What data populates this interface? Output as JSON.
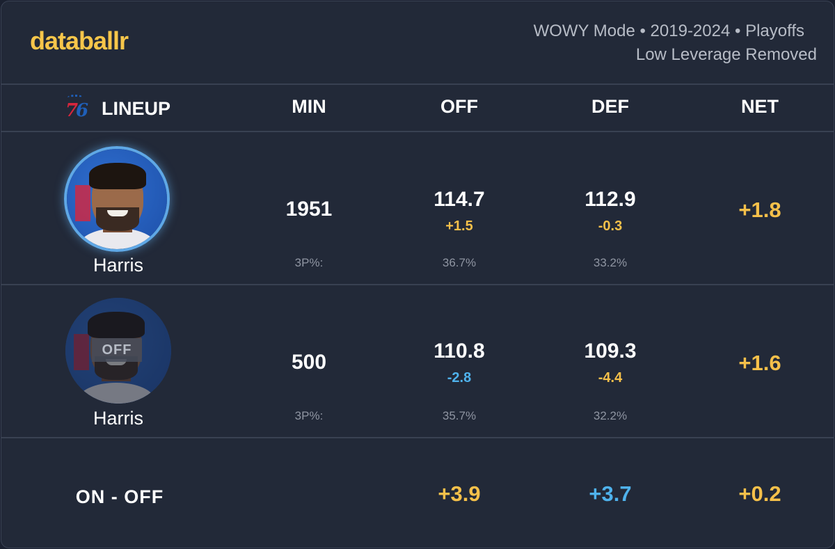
{
  "brand": "databallr",
  "meta": {
    "line1": "WOWY Mode • 2019-2024 • Playoffs",
    "line2": "Low Leverage Removed"
  },
  "team_logo": "76ers-logo",
  "columns": {
    "lineup": "LINEUP",
    "min": "MIN",
    "off": "OFF",
    "def": "DEF",
    "net": "NET"
  },
  "rows": [
    {
      "status": "on",
      "player": "Harris",
      "min": "1951",
      "off": "114.7",
      "off_delta": "+1.5",
      "def": "112.9",
      "def_delta": "-0.3",
      "net": "+1.8",
      "tp_label": "3P%:",
      "off_3p": "36.7%",
      "def_3p": "33.2%"
    },
    {
      "status": "off",
      "off_badge": "OFF",
      "player": "Harris",
      "min": "500",
      "off": "110.8",
      "off_delta": "-2.8",
      "def": "109.3",
      "def_delta": "-4.4",
      "net": "+1.6",
      "tp_label": "3P%:",
      "off_3p": "35.7%",
      "def_3p": "32.2%"
    }
  ],
  "on_off": {
    "label": "ON - OFF",
    "off": "+3.9",
    "def": "+3.7",
    "net": "+0.2"
  },
  "colors": {
    "yellow": "#f5c04a",
    "blue": "#4fb2ec",
    "background": "#222938",
    "ring": "#5fa8e6"
  }
}
